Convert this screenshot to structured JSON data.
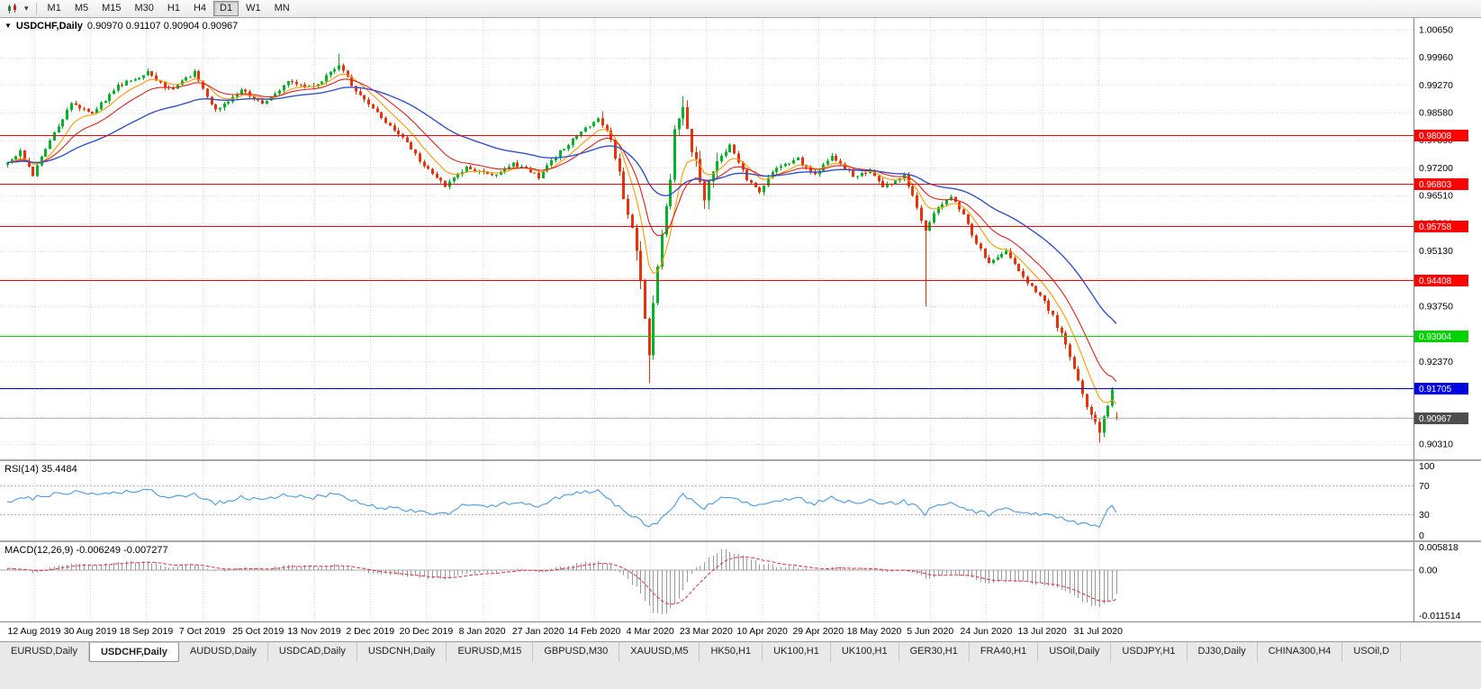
{
  "toolbar": {
    "timeframes": [
      "M1",
      "M5",
      "M15",
      "M30",
      "H1",
      "H4",
      "D1",
      "W1",
      "MN"
    ],
    "active": "D1",
    "dropdown_glyph": "▾"
  },
  "chart": {
    "marker": "▼",
    "symbol": "USDCHF,Daily",
    "ohlc_text": "0.90970 0.91107 0.90904 0.90967"
  },
  "price_axis": {
    "ticks": [
      "1.00650",
      "0.99960",
      "0.99270",
      "0.98580",
      "0.97890",
      "0.97200",
      "0.96510",
      "0.95820",
      "0.95130",
      "0.94440",
      "0.93750",
      "0.93060",
      "0.92370",
      "0.91680",
      "0.90990",
      "0.90310"
    ]
  },
  "rsi": {
    "label": "RSI(14) 35.4484",
    "axis_labels": [
      "100",
      "70",
      "30",
      "0"
    ]
  },
  "macd": {
    "label": "MACD(12,26,9) -0.006249 -0.007277",
    "axis_labels": [
      "0.005818",
      "0.00",
      "-0.011514"
    ]
  },
  "tabs": {
    "active_index": 1,
    "items": [
      "EURUSD,Daily",
      "USDCHF,Daily",
      "AUDUSD,Daily",
      "USDCAD,Daily",
      "USDCNH,Daily",
      "EURUSD,M15",
      "GBPUSD,M30",
      "XAUUSD,M5",
      "HK50,H1",
      "UK100,H1",
      "UK100,H1",
      "GER30,H1",
      "FRA40,H1",
      "USOil,Daily",
      "USDJPY,H1",
      "DJ30,Daily",
      "CHINA300,H4",
      "USOil,D"
    ]
  },
  "chart_data": {
    "type": "candlestick",
    "symbol": "USDCHF",
    "timeframe": "Daily",
    "bars": 262,
    "price_range": [
      0.8993,
      1.0094
    ],
    "last_bar": {
      "open": 0.9097,
      "high": 0.91107,
      "low": 0.90904,
      "close": 0.90967
    },
    "colors": {
      "up": "#00b42a",
      "down": "#e8320a",
      "grid": "#dcdcdc",
      "background": "#ffffff"
    },
    "x_labels": [
      "12 Aug 2019",
      "30 Aug 2019",
      "18 Sep 2019",
      "7 Oct 2019",
      "25 Oct 2019",
      "13 Nov 2019",
      "2 Dec 2019",
      "20 Dec 2019",
      "8 Jan 2020",
      "27 Jan 2020",
      "14 Feb 2020",
      "4 Mar 2020",
      "23 Mar 2020",
      "10 Apr 2020",
      "29 Apr 2020",
      "18 May 2020",
      "5 Jun 2020",
      "24 Jun 2020",
      "13 Jul 2020",
      "31 Jul 2020"
    ],
    "close_anchors": [
      [
        0,
        0.973
      ],
      [
        3,
        0.976
      ],
      [
        6,
        0.97
      ],
      [
        10,
        0.979
      ],
      [
        15,
        0.988
      ],
      [
        20,
        0.9858
      ],
      [
        26,
        0.9925
      ],
      [
        33,
        0.9958
      ],
      [
        38,
        0.9915
      ],
      [
        44,
        0.9958
      ],
      [
        49,
        0.9862
      ],
      [
        55,
        0.9915
      ],
      [
        60,
        0.988
      ],
      [
        66,
        0.9935
      ],
      [
        72,
        0.992
      ],
      [
        78,
        0.9978
      ],
      [
        82,
        0.991
      ],
      [
        88,
        0.9845
      ],
      [
        93,
        0.9795
      ],
      [
        98,
        0.9725
      ],
      [
        103,
        0.9675
      ],
      [
        108,
        0.9722
      ],
      [
        114,
        0.97
      ],
      [
        119,
        0.9732
      ],
      [
        125,
        0.9698
      ],
      [
        130,
        0.976
      ],
      [
        136,
        0.9818
      ],
      [
        139,
        0.9848
      ],
      [
        142,
        0.979
      ],
      [
        145,
        0.9655
      ],
      [
        148,
        0.9525
      ],
      [
        150,
        0.934
      ],
      [
        151,
        0.9262
      ],
      [
        152,
        0.9395
      ],
      [
        154,
        0.955
      ],
      [
        156,
        0.969
      ],
      [
        157,
        0.981
      ],
      [
        159,
        0.9882
      ],
      [
        161,
        0.9772
      ],
      [
        164,
        0.9648
      ],
      [
        167,
        0.973
      ],
      [
        170,
        0.978
      ],
      [
        174,
        0.9692
      ],
      [
        177,
        0.9662
      ],
      [
        181,
        0.9722
      ],
      [
        186,
        0.9742
      ],
      [
        190,
        0.97
      ],
      [
        194,
        0.975
      ],
      [
        199,
        0.97
      ],
      [
        203,
        0.9712
      ],
      [
        206,
        0.9672
      ],
      [
        211,
        0.97
      ],
      [
        214,
        0.9622
      ],
      [
        216,
        0.956
      ],
      [
        218,
        0.9612
      ],
      [
        222,
        0.965
      ],
      [
        225,
        0.96
      ],
      [
        228,
        0.9532
      ],
      [
        231,
        0.9482
      ],
      [
        235,
        0.9512
      ],
      [
        238,
        0.9462
      ],
      [
        241,
        0.9422
      ],
      [
        244,
        0.9392
      ],
      [
        248,
        0.9302
      ],
      [
        251,
        0.9222
      ],
      [
        253,
        0.9152
      ],
      [
        255,
        0.91
      ],
      [
        257,
        0.9062
      ],
      [
        259,
        0.9132
      ],
      [
        260,
        0.9168
      ],
      [
        261,
        0.90967
      ]
    ],
    "wick_overrides": {
      "78": {
        "high": 1.0005
      },
      "140": {
        "high": 0.9862
      },
      "151": {
        "low": 0.9183
      },
      "159": {
        "high": 0.9898
      },
      "216": {
        "low": 0.9375
      },
      "257": {
        "low": 0.9035
      }
    },
    "moving_averages": [
      {
        "period": 8,
        "color": "#ff9a00"
      },
      {
        "period": 16,
        "color": "#dd2020"
      },
      {
        "period": 40,
        "color": "#3352c8"
      }
    ],
    "hlines": [
      {
        "label": "0.98008",
        "price": 0.98008,
        "color": "#ff0000"
      },
      {
        "label": "0.96803",
        "price": 0.96803,
        "color": "#ff0000"
      },
      {
        "label": "0.95758",
        "price": 0.95758,
        "color": "#ff0000"
      },
      {
        "label": "0.94408",
        "price": 0.94408,
        "color": "#ff0000"
      },
      {
        "label": "0.93004",
        "price": 0.93004,
        "color": "#00d400"
      },
      {
        "label": "0.91705",
        "price": 0.91705,
        "color": "#0000e0"
      }
    ],
    "current_price": {
      "label": "0.90967",
      "value": 0.90967,
      "badge_color": "#4d4d4d",
      "line_color": "#b8b8b8"
    },
    "rsi": {
      "period": 14,
      "value": 35.4484,
      "color": "#4a9be0",
      "levels": [
        70,
        30
      ],
      "axis_values": [
        100,
        70,
        30,
        0
      ],
      "anchors": [
        [
          0,
          48
        ],
        [
          8,
          55
        ],
        [
          15,
          62
        ],
        [
          22,
          58
        ],
        [
          28,
          63
        ],
        [
          33,
          65
        ],
        [
          38,
          52
        ],
        [
          44,
          60
        ],
        [
          49,
          45
        ],
        [
          55,
          55
        ],
        [
          60,
          50
        ],
        [
          66,
          58
        ],
        [
          72,
          54
        ],
        [
          78,
          60
        ],
        [
          83,
          45
        ],
        [
          88,
          40
        ],
        [
          93,
          38
        ],
        [
          98,
          33
        ],
        [
          103,
          30
        ],
        [
          108,
          45
        ],
        [
          114,
          42
        ],
        [
          119,
          48
        ],
        [
          125,
          42
        ],
        [
          130,
          55
        ],
        [
          136,
          62
        ],
        [
          139,
          65
        ],
        [
          142,
          50
        ],
        [
          145,
          35
        ],
        [
          148,
          25
        ],
        [
          151,
          13
        ],
        [
          153,
          18
        ],
        [
          156,
          35
        ],
        [
          159,
          58
        ],
        [
          161,
          50
        ],
        [
          164,
          40
        ],
        [
          167,
          50
        ],
        [
          170,
          55
        ],
        [
          174,
          45
        ],
        [
          177,
          42
        ],
        [
          181,
          50
        ],
        [
          186,
          52
        ],
        [
          190,
          46
        ],
        [
          194,
          53
        ],
        [
          199,
          47
        ],
        [
          203,
          50
        ],
        [
          206,
          44
        ],
        [
          211,
          49
        ],
        [
          214,
          40
        ],
        [
          216,
          32
        ],
        [
          218,
          40
        ],
        [
          222,
          46
        ],
        [
          225,
          40
        ],
        [
          228,
          34
        ],
        [
          231,
          30
        ],
        [
          235,
          38
        ],
        [
          238,
          33
        ],
        [
          241,
          30
        ],
        [
          244,
          29
        ],
        [
          248,
          25
        ],
        [
          251,
          21
        ],
        [
          253,
          17
        ],
        [
          255,
          15
        ],
        [
          257,
          14
        ],
        [
          259,
          35
        ],
        [
          260,
          40
        ],
        [
          261,
          35.4
        ]
      ]
    },
    "macd": {
      "fast": 12,
      "slow": 26,
      "signal": 9,
      "macd_value": -0.006249,
      "signal_value": -0.007277,
      "range": [
        -0.013,
        0.007
      ],
      "histogram_color": "#9a9a9a",
      "signal_color": "#e03040",
      "axis_values": [
        0.005818,
        0,
        -0.011514
      ],
      "anchors": [
        [
          0,
          0.0002
        ],
        [
          6,
          -0.0006
        ],
        [
          10,
          0.0004
        ],
        [
          15,
          0.0018
        ],
        [
          20,
          0.0012
        ],
        [
          26,
          0.0018
        ],
        [
          33,
          0.0022
        ],
        [
          38,
          0.0008
        ],
        [
          44,
          0.0015
        ],
        [
          49,
          -0.0005
        ],
        [
          55,
          0.0005
        ],
        [
          60,
          0.0002
        ],
        [
          66,
          0.0012
        ],
        [
          72,
          0.0008
        ],
        [
          78,
          0.0015
        ],
        [
          83,
          -0.0002
        ],
        [
          88,
          -0.0012
        ],
        [
          93,
          -0.0015
        ],
        [
          98,
          -0.002
        ],
        [
          103,
          -0.0022
        ],
        [
          108,
          -0.0008
        ],
        [
          114,
          -0.0006
        ],
        [
          119,
          0.0002
        ],
        [
          125,
          -0.0004
        ],
        [
          130,
          0.0008
        ],
        [
          136,
          0.0018
        ],
        [
          139,
          0.0022
        ],
        [
          142,
          0.001
        ],
        [
          145,
          -0.0015
        ],
        [
          148,
          -0.0045
        ],
        [
          150,
          -0.008
        ],
        [
          152,
          -0.0105
        ],
        [
          154,
          -0.0115
        ],
        [
          156,
          -0.01
        ],
        [
          158,
          -0.007
        ],
        [
          160,
          -0.003
        ],
        [
          162,
          0.0005
        ],
        [
          164,
          0.002
        ],
        [
          166,
          0.0038
        ],
        [
          168,
          0.0052
        ],
        [
          170,
          0.0048
        ],
        [
          173,
          0.0035
        ],
        [
          177,
          0.0018
        ],
        [
          181,
          0.0008
        ],
        [
          186,
          0.0006
        ],
        [
          190,
          -0.0002
        ],
        [
          194,
          0.0008
        ],
        [
          199,
          0.0002
        ],
        [
          203,
          0.0004
        ],
        [
          206,
          -0.0004
        ],
        [
          211,
          0.0002
        ],
        [
          214,
          -0.0012
        ],
        [
          216,
          -0.0022
        ],
        [
          218,
          -0.0018
        ],
        [
          222,
          -0.001
        ],
        [
          225,
          -0.0015
        ],
        [
          228,
          -0.0025
        ],
        [
          231,
          -0.0032
        ],
        [
          235,
          -0.0028
        ],
        [
          238,
          -0.003
        ],
        [
          241,
          -0.0034
        ],
        [
          244,
          -0.0038
        ],
        [
          248,
          -0.005
        ],
        [
          251,
          -0.0065
        ],
        [
          253,
          -0.008
        ],
        [
          255,
          -0.009
        ],
        [
          257,
          -0.0095
        ],
        [
          259,
          -0.008
        ],
        [
          261,
          -0.006249
        ]
      ]
    }
  }
}
